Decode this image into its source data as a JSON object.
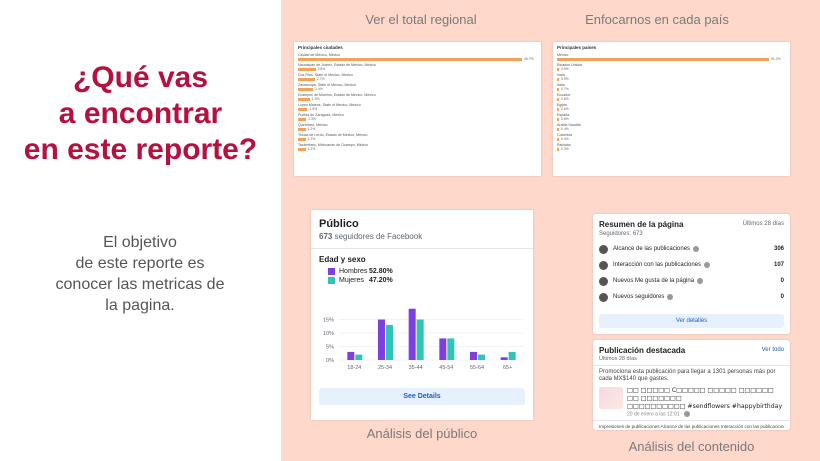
{
  "left": {
    "title_lines": [
      "¿Qué vas",
      "a encontrar",
      "en este reporte?"
    ],
    "desc_lines": [
      "El objetivo",
      "de este reporte es",
      "conocer las metricas de",
      "la pagina."
    ]
  },
  "captions": {
    "regional": "Ver el total regional",
    "country": "Enfocarnos en cada país",
    "audience": "Análisis del público",
    "content": "Análisis del contenido"
  },
  "cities": {
    "header": "Principales ciudades",
    "items": [
      {
        "label": "Ciudad de México, México",
        "pct": 35.7,
        "pct_label": "35.7%"
      },
      {
        "label": "Naucalpan de Juárez, Estado de México, México",
        "pct": 2.8,
        "pct_label": "2.8%"
      },
      {
        "label": "Dos Ríos, State of Mexico, Mexico",
        "pct": 2.7,
        "pct_label": "2.7%"
      },
      {
        "label": "Zacamulpa, State of Mexico, Mexico",
        "pct": 2.4,
        "pct_label": "2.4%"
      },
      {
        "label": "Ecatepec de Morelos, Estado de México, México",
        "pct": 1.9,
        "pct_label": "1.9%"
      },
      {
        "label": "López Mateos, State of Mexico, Mexico",
        "pct": 1.5,
        "pct_label": "1.5%"
      },
      {
        "label": "Puebla de Zaragoza, México",
        "pct": 1.3,
        "pct_label": "1.3%"
      },
      {
        "label": "Querétaro, México",
        "pct": 1.2,
        "pct_label": "1.2%"
      },
      {
        "label": "Toluca de Lerdo, Estado de México, México",
        "pct": 1.2,
        "pct_label": "1.2%"
      },
      {
        "label": "Tacámbaro, Michoacán de Ocampo, México",
        "pct": 1.2,
        "pct_label": "1.2%"
      }
    ]
  },
  "countries": {
    "header": "Principales países",
    "items": [
      {
        "label": "México",
        "pct": 91.2,
        "pct_label": "91.2%"
      },
      {
        "label": "Estados Unidos",
        "pct": 0.9,
        "pct_label": "0.9%"
      },
      {
        "label": "India",
        "pct": 0.9,
        "pct_label": "0.9%"
      },
      {
        "label": "Italia",
        "pct": 0.7,
        "pct_label": "0.7%"
      },
      {
        "label": "Ecuador",
        "pct": 0.6,
        "pct_label": "0.6%"
      },
      {
        "label": "Egipto",
        "pct": 0.6,
        "pct_label": "0.6%"
      },
      {
        "label": "España",
        "pct": 0.6,
        "pct_label": "0.6%"
      },
      {
        "label": "Arabia Saudita",
        "pct": 0.4,
        "pct_label": "0.4%"
      },
      {
        "label": "Colombia",
        "pct": 0.4,
        "pct_label": "0.4%"
      },
      {
        "label": "Pakistán",
        "pct": 0.3,
        "pct_label": "0.3%"
      }
    ]
  },
  "audience": {
    "title": "Público",
    "followers_count": "673",
    "followers_text": " seguidores de Facebook",
    "section": "Edad y sexo",
    "men_label": "Hombres",
    "men_pct": "52.80%",
    "women_label": "Mujeres",
    "women_pct": "47.20%",
    "button": "See Details",
    "colors": {
      "men": "#7f3fe0",
      "women": "#2ec4b6"
    }
  },
  "chart_data": {
    "type": "bar",
    "categories": [
      "18-24",
      "25-34",
      "35-44",
      "45-54",
      "55-64",
      "65+"
    ],
    "series": [
      {
        "name": "Hombres",
        "values": [
          3,
          15,
          19,
          8,
          3,
          1
        ]
      },
      {
        "name": "Mujeres",
        "values": [
          2,
          13,
          15,
          8,
          2,
          3
        ]
      }
    ],
    "ylim": [
      0,
      20
    ],
    "yticks": [
      "0%",
      "5%",
      "10%",
      "15%"
    ]
  },
  "summary": {
    "title": "Resumen de la página",
    "period": "Últimos 28 días",
    "followers": "Seguidores: 673",
    "rows": [
      {
        "label": "Alcance de las publicaciones",
        "value": "306",
        "icon": "globe-icon"
      },
      {
        "label": "Interacción con las publicaciones",
        "value": "107",
        "icon": "people-icon"
      },
      {
        "label": "Nuevos Me gusta de la página",
        "value": "0",
        "icon": "thumbs-up-icon"
      },
      {
        "label": "Nuevos seguidores",
        "value": "0",
        "icon": "inbox-icon"
      }
    ],
    "button": "Ver detalles"
  },
  "featured": {
    "title": "Publicación destacada",
    "link": "Ver todo",
    "period": "Últimos 28 días",
    "promo": "Promociona esta publicación para llegar a 1301 personas más por cada MX$140 que gastes.",
    "post_text_1": "□□ □□□□□ C□□□□□ □□□□□ □□□□□□ □□ □□□□□□□",
    "post_text_2": "□□□□□□□□□□ #sendflowers #happybirthday",
    "post_date": "20 de enero a las 12:01 · ",
    "metrics": "Impresiones de publicaciones  Alcance de las publicaciones  Interacción con las publicaciones"
  }
}
